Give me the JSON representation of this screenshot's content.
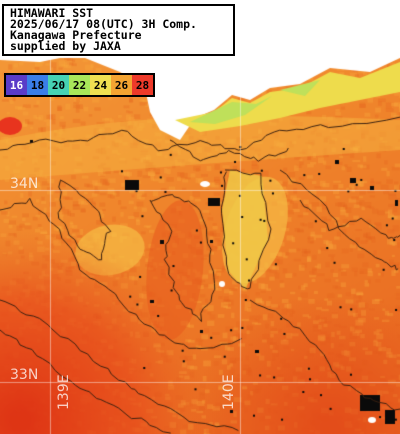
{
  "header": {
    "line1": "HIMAWARI SST",
    "line2": "2025/06/17 08(UTC) 3H Comp.",
    "line3": "Kanagawa Prefecture",
    "line4": "supplied by JAXA"
  },
  "legend": [
    {
      "label": "16",
      "color": "#5a3cc8"
    },
    {
      "label": "18",
      "color": "#3a7ee8"
    },
    {
      "label": "20",
      "color": "#46d2b4"
    },
    {
      "label": "22",
      "color": "#a8e65a"
    },
    {
      "label": "24",
      "color": "#f0e052"
    },
    {
      "label": "26",
      "color": "#f4a432"
    },
    {
      "label": "28",
      "color": "#ee3a2a"
    }
  ],
  "grid": {
    "lat_labels": [
      "34N",
      "33N"
    ],
    "lon_labels": [
      "139E",
      "140E"
    ]
  },
  "colors": {
    "land": "#ffffff",
    "cloud": "#0a0a0a",
    "warm_sea": "#f07a28",
    "hot_sea": "#e84a1e",
    "cool_sea": "#f4c044",
    "coastal_cool": "#c8e058"
  }
}
